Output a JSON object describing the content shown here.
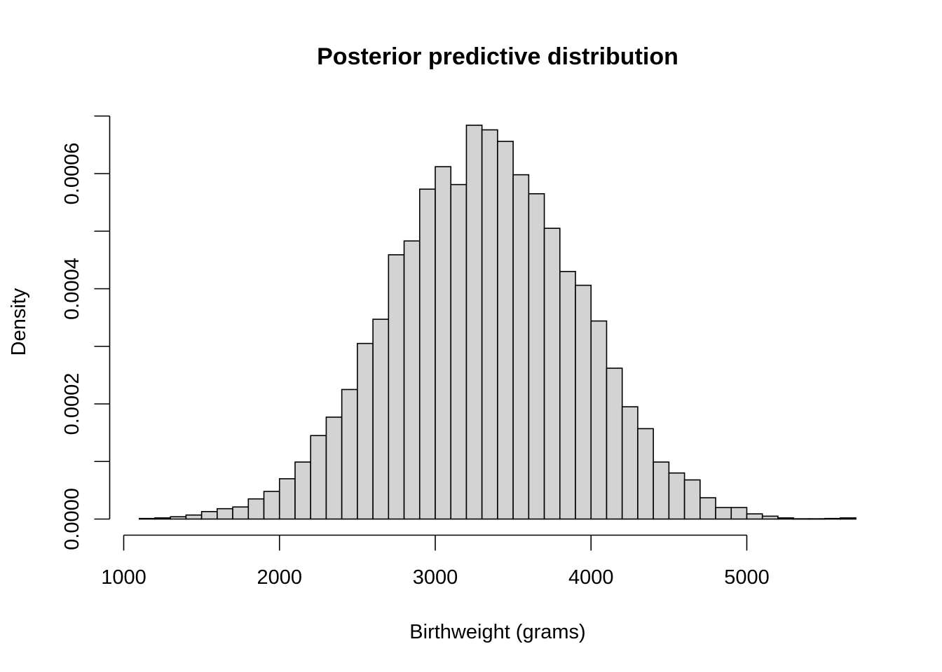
{
  "chart_data": {
    "type": "histogram",
    "title": "Posterior predictive distribution",
    "xlabel": "Birthweight (grams)",
    "ylabel": "Density",
    "xlim": [
      1000,
      5000
    ],
    "ylim": [
      0,
      0.0007
    ],
    "x_ticks": [
      "1000",
      "2000",
      "3000",
      "4000",
      "5000"
    ],
    "x_tick_values": [
      1000,
      2000,
      3000,
      4000,
      5000
    ],
    "y_ticks": [
      "0.0000",
      "0.0002",
      "0.0004",
      "0.0006"
    ],
    "y_tick_values": [
      0,
      0.0002,
      0.0004,
      0.0006
    ],
    "y_minor_tick_values": [
      0.0001,
      0.0003,
      0.0005,
      0.0007
    ],
    "bin_width": 100,
    "bin_starts": [
      1100,
      1200,
      1300,
      1400,
      1500,
      1600,
      1700,
      1800,
      1900,
      2000,
      2100,
      2200,
      2300,
      2400,
      2500,
      2600,
      2700,
      2800,
      2900,
      3000,
      3100,
      3200,
      3300,
      3400,
      3500,
      3600,
      3700,
      3800,
      3900,
      4000,
      4100,
      4200,
      4300,
      4400,
      4500,
      4600,
      4700,
      4800,
      4900,
      5000,
      5100,
      5200,
      5300,
      5400,
      5500,
      5600
    ],
    "values": [
      1e-06,
      2e-06,
      4e-06,
      7e-06,
      1.3e-05,
      1.8e-05,
      2.1e-05,
      3.5e-05,
      4.8e-05,
      7e-05,
      9.9e-05,
      0.000145,
      0.000177,
      0.000225,
      0.000305,
      0.000347,
      0.000459,
      0.000483,
      0.000573,
      0.000612,
      0.000581,
      0.000684,
      0.000676,
      0.000656,
      0.000598,
      0.000565,
      0.000505,
      0.00043,
      0.000406,
      0.000344,
      0.000262,
      0.000195,
      0.000157,
      9.9e-05,
      8e-05,
      6.8e-05,
      3.7e-05,
      2e-05,
      2e-05,
      9e-06,
      5e-06,
      2e-06,
      5e-07,
      5e-07,
      1e-06,
      2e-06
    ],
    "bar_fill": "#d3d3d3",
    "bar_stroke": "#000000"
  }
}
